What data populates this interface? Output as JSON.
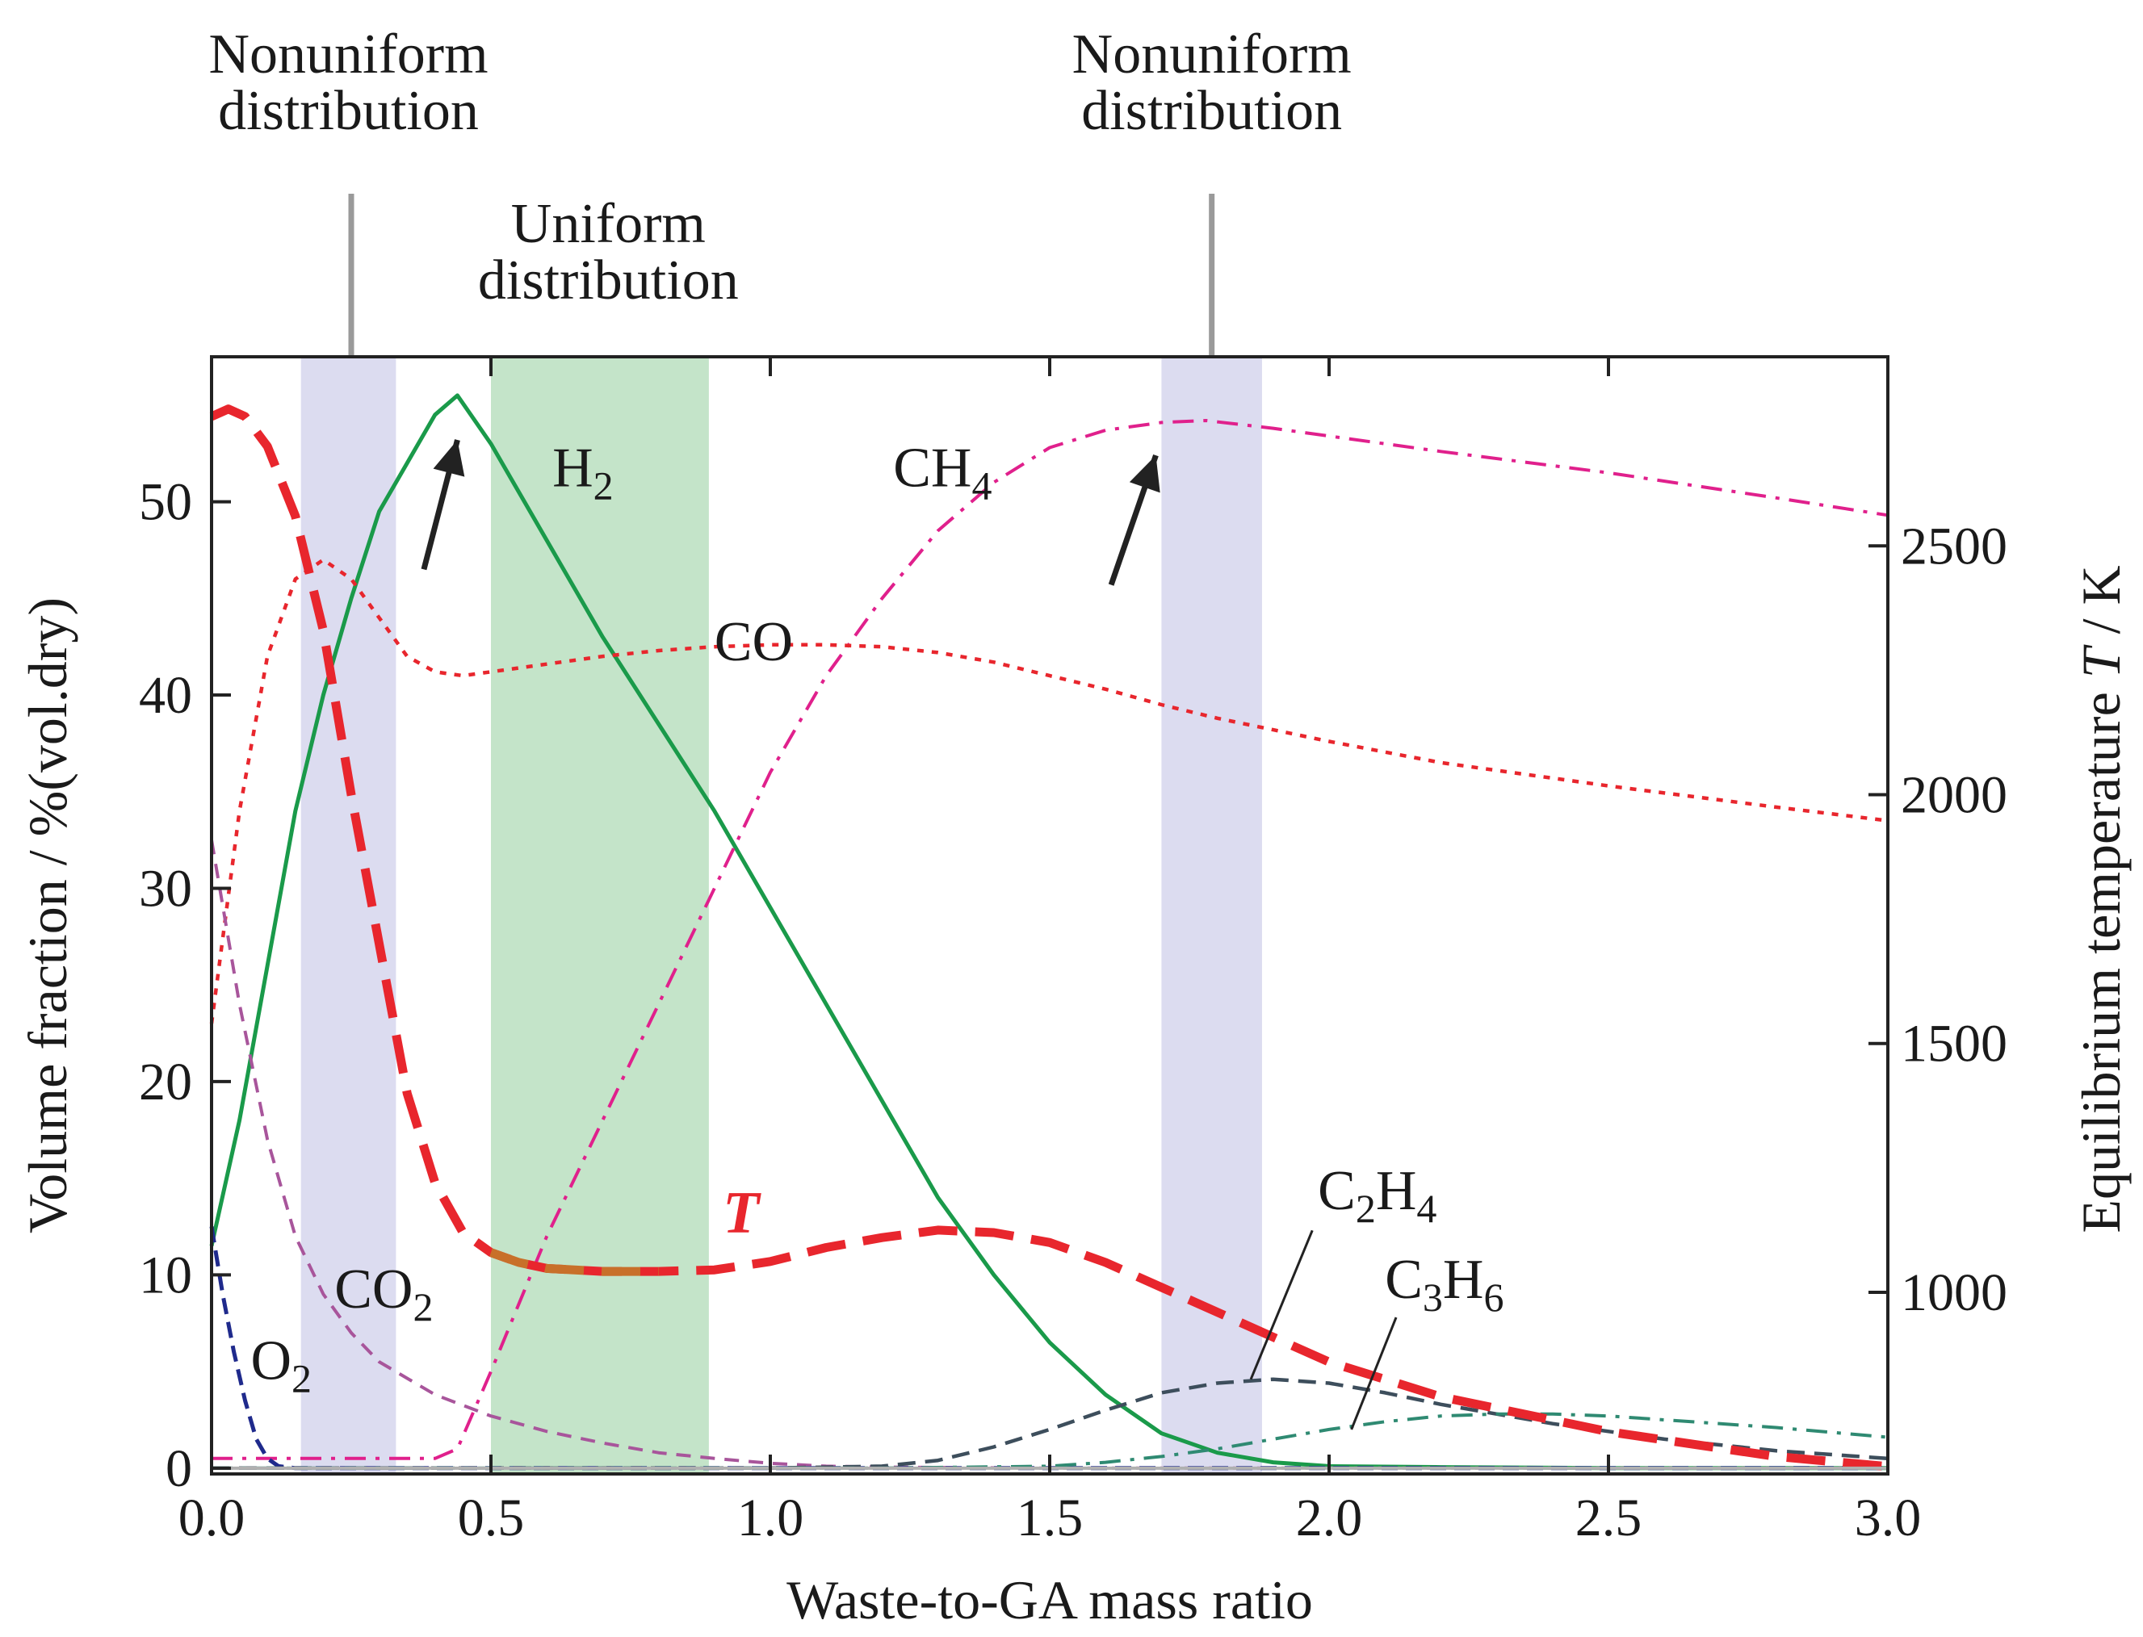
{
  "chart_data": {
    "type": "line",
    "xlabel": "Waste-to-GA mass ratio",
    "ylabel": "Volume fraction / %(vol.dry)",
    "y2label_prefix": "Equilibrium temperature ",
    "y2label_var": "T",
    "y2label_suffix": " / K",
    "xlim": [
      0,
      3
    ],
    "ylim": [
      -0.3,
      57.5
    ],
    "y2lim": [
      635,
      2880
    ],
    "xticks": [
      0,
      0.5,
      1.0,
      1.5,
      2.0,
      2.5,
      3.0
    ],
    "xtick_labels": [
      "0.0",
      "0.5",
      "1.0",
      "1.5",
      "2.0",
      "2.5",
      "3.0"
    ],
    "yticks": [
      0,
      10,
      20,
      30,
      40,
      50
    ],
    "ytick_labels": [
      "0",
      "10",
      "20",
      "30",
      "40",
      "50"
    ],
    "y2ticks": [
      1000,
      1500,
      2000,
      2500
    ],
    "y2tick_labels": [
      "1000",
      "1500",
      "2000",
      "2500"
    ],
    "regions": [
      {
        "name": "nonuniform-1",
        "x0": 0.16,
        "x1": 0.33,
        "color": "#dcdcf0",
        "label_lines": [
          "Nonuniform",
          "distribution"
        ],
        "label_x": 0.245,
        "marker_x": 0.25
      },
      {
        "name": "uniform",
        "x0": 0.5,
        "x1": 0.89,
        "color": "#c4e4c9",
        "label_lines": [
          "Uniform",
          "distribution"
        ],
        "label_x": 0.71
      },
      {
        "name": "nonuniform-2",
        "x0": 1.7,
        "x1": 1.88,
        "color": "#dcdcf0",
        "label_lines": [
          "Nonuniform",
          "distribution"
        ],
        "label_x": 1.79,
        "marker_x": 1.79
      }
    ],
    "series": [
      {
        "name": "H2",
        "label_main": "H",
        "label_sub": "2",
        "axis": "left",
        "color": "#1a9a4a",
        "dash": "",
        "width": 5,
        "x": [
          0,
          0.05,
          0.1,
          0.15,
          0.2,
          0.25,
          0.3,
          0.35,
          0.4,
          0.44,
          0.5,
          0.6,
          0.7,
          0.8,
          0.9,
          1.0,
          1.1,
          1.2,
          1.3,
          1.4,
          1.5,
          1.6,
          1.7,
          1.8,
          1.9,
          2.0,
          2.2,
          2.5,
          3.0
        ],
        "y": [
          11.5,
          18,
          26,
          34,
          40,
          45,
          49.5,
          52,
          54.5,
          55.5,
          53,
          48,
          43,
          38.5,
          34,
          29,
          24,
          19,
          14,
          10,
          6.5,
          3.8,
          1.8,
          0.8,
          0.3,
          0.1,
          0.05,
          0,
          0
        ]
      },
      {
        "name": "CH4",
        "label_main": "CH",
        "label_sub": "4",
        "axis": "left",
        "color": "#e0208c",
        "dash": "26 12 5 12",
        "width": 4,
        "x": [
          0,
          0.3,
          0.4,
          0.44,
          0.5,
          0.6,
          0.7,
          0.8,
          0.9,
          1.0,
          1.1,
          1.2,
          1.3,
          1.4,
          1.5,
          1.6,
          1.7,
          1.78,
          1.9,
          2.0,
          2.2,
          2.5,
          2.8,
          3.0
        ],
        "y": [
          0.5,
          0.5,
          0.5,
          1,
          5,
          12,
          18,
          24,
          30,
          36,
          41,
          45,
          48.5,
          51,
          52.8,
          53.7,
          54.1,
          54.2,
          53.8,
          53.4,
          52.6,
          51.5,
          50.2,
          49.3
        ]
      },
      {
        "name": "CO",
        "label_main": "CO",
        "label_sub": "",
        "axis": "left",
        "color": "#e8262d",
        "dash": "8 10",
        "width": 4.5,
        "x": [
          0,
          0.05,
          0.1,
          0.15,
          0.2,
          0.25,
          0.3,
          0.35,
          0.4,
          0.45,
          0.5,
          0.6,
          0.7,
          0.8,
          0.9,
          1.0,
          1.1,
          1.2,
          1.3,
          1.4,
          1.5,
          1.6,
          1.7,
          1.8,
          1.9,
          2.0,
          2.2,
          2.5,
          2.8,
          3.0
        ],
        "y": [
          23,
          34,
          42,
          46,
          47,
          46,
          44,
          42,
          41.2,
          41,
          41.2,
          41.6,
          42,
          42.3,
          42.5,
          42.6,
          42.6,
          42.5,
          42.2,
          41.7,
          41,
          40.3,
          39.5,
          38.8,
          38.2,
          37.6,
          36.5,
          35.3,
          34.2,
          33.5
        ]
      },
      {
        "name": "CO2",
        "label_main": "CO",
        "label_sub": "2",
        "axis": "left",
        "color": "#a8559b",
        "dash": "18 12",
        "width": 4,
        "x": [
          0,
          0.05,
          0.1,
          0.15,
          0.2,
          0.25,
          0.3,
          0.4,
          0.5,
          0.6,
          0.7,
          0.8,
          0.9,
          1.0,
          1.1,
          1.2,
          1.5,
          2.0,
          3.0
        ],
        "y": [
          32.5,
          24,
          17,
          12,
          9,
          7,
          5.5,
          3.8,
          2.7,
          1.9,
          1.3,
          0.8,
          0.5,
          0.25,
          0.1,
          0.05,
          0,
          0,
          0
        ]
      },
      {
        "name": "O2",
        "label_main": "O",
        "label_sub": "2",
        "axis": "left",
        "color": "#1f2a8c",
        "dash": "20 10",
        "width": 5,
        "x": [
          0,
          0.02,
          0.04,
          0.06,
          0.08,
          0.1,
          0.12,
          0.15,
          0.2,
          0.5,
          1.0,
          2.0,
          3.0
        ],
        "y": [
          12.5,
          9,
          6,
          3.5,
          1.5,
          0.5,
          0.1,
          0,
          0,
          0,
          0,
          0,
          0
        ]
      },
      {
        "name": "C2H4",
        "label_main": "C",
        "label_sub": "2",
        "label_main2": "H",
        "label_sub2": "4",
        "axis": "left",
        "color": "#3d4e5c",
        "dash": "22 12",
        "width": 4.5,
        "x": [
          0,
          1.0,
          1.2,
          1.3,
          1.4,
          1.5,
          1.6,
          1.7,
          1.8,
          1.9,
          2.0,
          2.1,
          2.2,
          2.4,
          2.6,
          2.8,
          3.0
        ],
        "y": [
          0,
          0,
          0.1,
          0.4,
          1.1,
          2.0,
          3.0,
          3.9,
          4.4,
          4.6,
          4.4,
          3.9,
          3.3,
          2.3,
          1.5,
          0.9,
          0.5
        ]
      },
      {
        "name": "C3H6",
        "label_main": "C",
        "label_sub": "3",
        "label_main2": "H",
        "label_sub2": "6",
        "axis": "left",
        "color": "#2f8a72",
        "dash": "26 12 5 12",
        "width": 4,
        "x": [
          0,
          1.2,
          1.5,
          1.6,
          1.7,
          1.8,
          1.9,
          2.0,
          2.1,
          2.2,
          2.3,
          2.4,
          2.5,
          2.6,
          2.8,
          3.0
        ],
        "y": [
          0,
          0,
          0.1,
          0.3,
          0.6,
          1.0,
          1.5,
          2.0,
          2.4,
          2.7,
          2.8,
          2.8,
          2.7,
          2.5,
          2.1,
          1.6
        ]
      },
      {
        "name": "T",
        "label_main": "T",
        "label_sub": "",
        "axis": "right",
        "color": "#e8262d",
        "dash": "48 22",
        "width": 11,
        "x": [
          0,
          0.03,
          0.06,
          0.1,
          0.15,
          0.2,
          0.25,
          0.3,
          0.35,
          0.4,
          0.45,
          0.5,
          0.55,
          0.6,
          0.7,
          0.8,
          0.9,
          1.0,
          1.1,
          1.2,
          1.3,
          1.4,
          1.5,
          1.6,
          1.7,
          1.8,
          1.9,
          2.0,
          2.2,
          2.5,
          2.8,
          3.0
        ],
        "y": [
          2760,
          2775,
          2760,
          2700,
          2560,
          2330,
          2000,
          1700,
          1400,
          1220,
          1120,
          1080,
          1060,
          1048,
          1042,
          1042,
          1045,
          1062,
          1090,
          1110,
          1125,
          1120,
          1100,
          1060,
          1010,
          960,
          910,
          860,
          790,
          720,
          670,
          650
        ]
      }
    ]
  }
}
